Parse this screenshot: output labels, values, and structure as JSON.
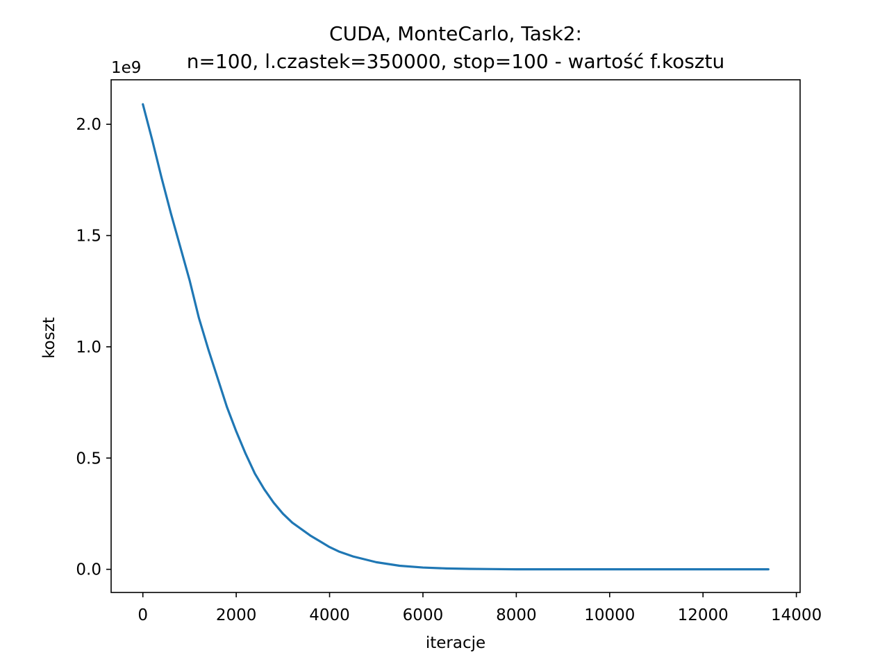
{
  "chart_data": {
    "type": "line",
    "title_line1": "CUDA, MonteCarlo, Task2:",
    "title_line2": "n=100, l.czastek=350000, stop=100 - wartość f.kosztu",
    "xlabel": "iteracje",
    "ylabel": "koszt",
    "y_offset_label": "1e9",
    "y_scale": 1000000000,
    "xlim": [
      -680,
      14080
    ],
    "ylim": [
      -0.104,
      2.2
    ],
    "xticks": [
      0,
      2000,
      4000,
      6000,
      8000,
      10000,
      12000,
      14000
    ],
    "xtick_labels": [
      "0",
      "2000",
      "4000",
      "6000",
      "8000",
      "10000",
      "12000",
      "14000"
    ],
    "yticks": [
      0.0,
      0.5,
      1.0,
      1.5,
      2.0
    ],
    "ytick_labels": [
      "0.0",
      "0.5",
      "1.0",
      "1.5",
      "2.0"
    ],
    "grid": false,
    "series": [
      {
        "color": "#1f77b4",
        "x": [
          0,
          200,
          400,
          600,
          800,
          1000,
          1200,
          1400,
          1600,
          1800,
          2000,
          2200,
          2400,
          2600,
          2800,
          3000,
          3200,
          3400,
          3600,
          3800,
          4000,
          4200,
          4500,
          5000,
          5500,
          6000,
          6500,
          7000,
          7500,
          8000,
          9000,
          10000,
          11000,
          12000,
          13400
        ],
        "values": [
          2.09,
          1.93,
          1.76,
          1.6,
          1.45,
          1.3,
          1.13,
          0.99,
          0.86,
          0.73,
          0.62,
          0.52,
          0.43,
          0.36,
          0.3,
          0.25,
          0.21,
          0.18,
          0.15,
          0.125,
          0.1,
          0.08,
          0.058,
          0.032,
          0.016,
          0.008,
          0.004,
          0.002,
          0.001,
          0.0,
          0.0,
          0.0,
          0.0,
          0.0,
          0.0
        ]
      }
    ]
  }
}
